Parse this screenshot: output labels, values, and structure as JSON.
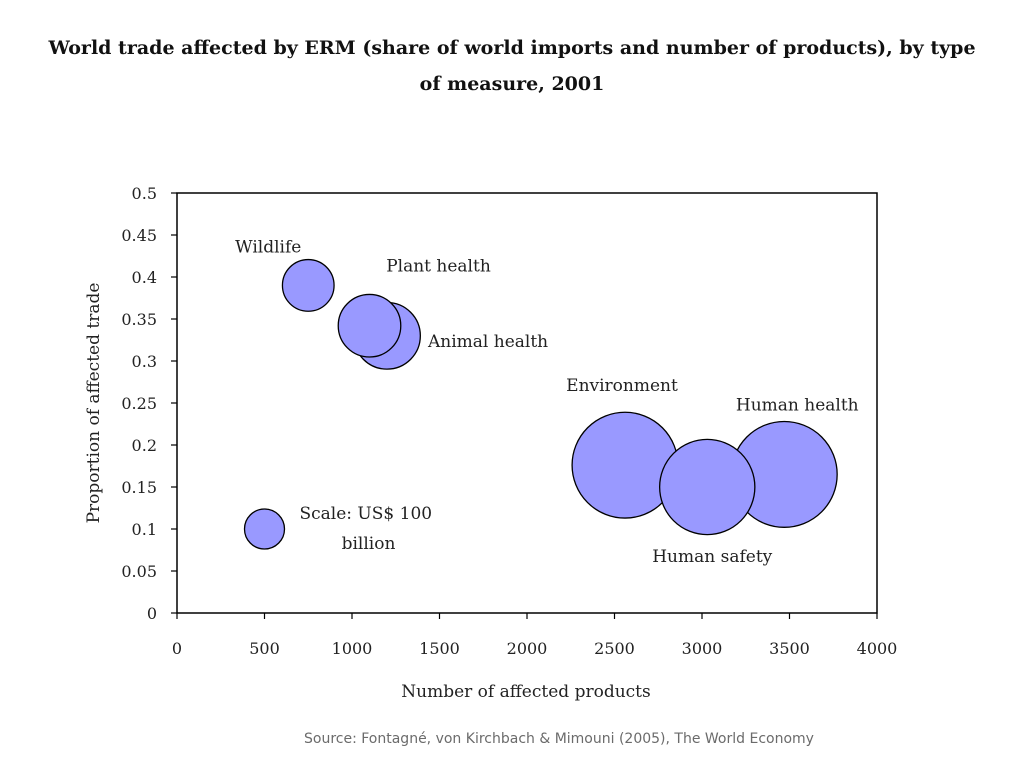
{
  "chart_data": {
    "type": "scatter",
    "title": "World trade affected by ERM (share of world imports and number of products), by type of measure, 2001",
    "xlabel": "Number of affected products",
    "ylabel": "Proportion of affected trade",
    "xlim": [
      0,
      4000
    ],
    "ylim": [
      0,
      0.5
    ],
    "x_ticks": [
      "0",
      "500",
      "1000",
      "1500",
      "2000",
      "2500",
      "3000",
      "3500",
      "4000"
    ],
    "y_ticks": [
      "0",
      "0.05",
      "0.1",
      "0.15",
      "0.2",
      "0.25",
      "0.3",
      "0.35",
      "0.4",
      "0.45",
      "0.5"
    ],
    "grid": false,
    "bubble_color": "#9999ff",
    "bubble_stroke": "#000000",
    "points": [
      {
        "label": "Wildlife",
        "x": 750,
        "y": 0.39,
        "size": 75
      },
      {
        "label": "Animal health",
        "x": 1200,
        "y": 0.33,
        "size": 125
      },
      {
        "label": "Plant health",
        "x": 1100,
        "y": 0.342,
        "size": 110
      },
      {
        "label": "Environment",
        "x": 2560,
        "y": 0.176,
        "size": 315
      },
      {
        "label": "Human health",
        "x": 3470,
        "y": 0.165,
        "size": 315
      },
      {
        "label": "Human safety",
        "x": 3030,
        "y": 0.15,
        "size": 255
      }
    ],
    "scale_reference": {
      "x": 500,
      "y": 0.1,
      "size": 45,
      "label_line1": "Scale: US$ 100",
      "label_line2": "billion"
    }
  },
  "source": "Source: Fontagné, von Kirchbach & Mimouni (2005), The World Economy"
}
